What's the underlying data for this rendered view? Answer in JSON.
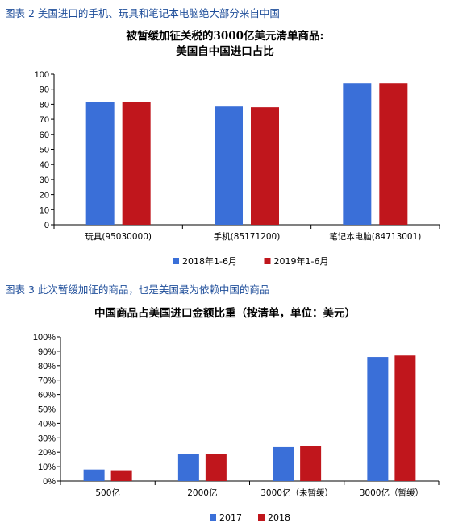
{
  "chart_data": [
    {
      "type": "bar",
      "caption": "图表 2 美国进口的手机、玩具和笔记本电脑绝大部分来自中国",
      "title_lines": [
        "被暂缓加征关税的3000亿美元清单商品:",
        "美国自中国进口占比"
      ],
      "categories": [
        "玩具(95030000)",
        "手机(85171200)",
        "笔记本电脑(84713001)"
      ],
      "series": [
        {
          "name": "2018年1-6月",
          "values": [
            81.5,
            78.5,
            94
          ]
        },
        {
          "name": "2019年1-6月",
          "values": [
            81.5,
            78,
            94
          ]
        }
      ],
      "ylim": [
        0,
        100
      ],
      "yticks": [
        "0",
        "10",
        "20",
        "30",
        "40",
        "50",
        "60",
        "70",
        "80",
        "90",
        "100"
      ],
      "colors": [
        "#3a6fd8",
        "#c0161c"
      ],
      "legend": "bottom",
      "grid": false
    },
    {
      "type": "bar",
      "caption": "图表 3 此次暂缓加征的商品，也是美国最为依赖中国的商品",
      "title_lines": [
        "中国商品占美国进口金额比重（按清单，单位：美元）"
      ],
      "categories": [
        "500亿",
        "2000亿",
        "3000亿（未暂缓）",
        "3000亿（暂缓）"
      ],
      "series": [
        {
          "name": "2017",
          "values": [
            8,
            18.5,
            23.5,
            86
          ]
        },
        {
          "name": "2018",
          "values": [
            7.5,
            18.5,
            24.5,
            87
          ]
        }
      ],
      "ylim": [
        0,
        100
      ],
      "yticks": [
        "0%",
        "10%",
        "20%",
        "30%",
        "40%",
        "50%",
        "60%",
        "70%",
        "80%",
        "90%",
        "100%"
      ],
      "colors": [
        "#3a6fd8",
        "#c0161c"
      ],
      "legend": "bottom",
      "grid": false
    }
  ]
}
